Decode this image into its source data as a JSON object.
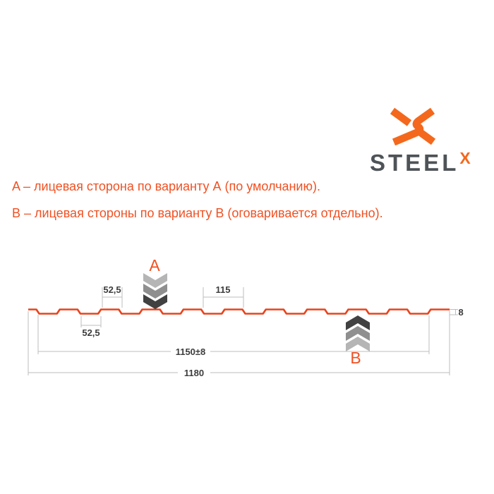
{
  "logo": {
    "wordmark": "STEEL",
    "wordmark_suffix": "X",
    "icon": "steelx-x-icon",
    "orange": "#f4681d",
    "gray": "#4e5358"
  },
  "notes": {
    "line_a": "A – лицевая сторона по варианту А (по умолчанию).",
    "line_b": "B – лицевая стороны по варианту В (оговаривается отдельно)."
  },
  "diagram": {
    "type": "trapezoidal-sheet-profile-drawing",
    "labels": {
      "variant_a": "A",
      "variant_b": "B"
    },
    "dimensions": {
      "flat_top": "52,5",
      "flat_bottom": "52,5",
      "pitch": "115",
      "working_width": "1150±8",
      "overall_width": "1180",
      "height": "8"
    },
    "colors": {
      "profile_line": "#e8431c",
      "accent_text": "#f05123",
      "dimension_line": "#bdbdbd",
      "dimension_text": "#3c3c3c",
      "chevron_light": "#b5b5b5",
      "chevron_mid": "#8f8f8f",
      "chevron_dark": "#414141"
    }
  }
}
